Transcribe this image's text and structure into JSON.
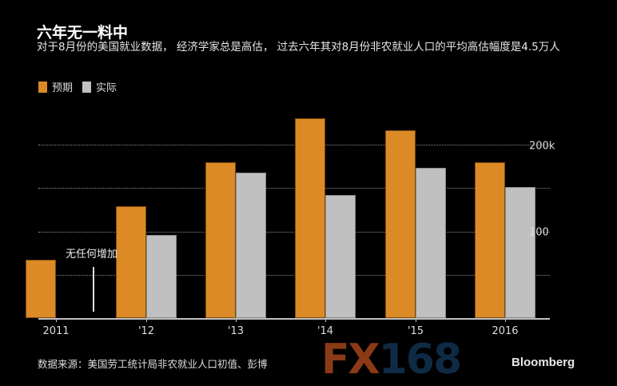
{
  "header": {
    "title": "六年无一料中",
    "subtitle": "对于8月份的美国就业数据， 经济学家总是高估， 过去六年其对8月份非农就业人口的平均高估幅度是4.5万人"
  },
  "legend": [
    {
      "label": "预期",
      "color": "#dc8a26"
    },
    {
      "label": "实际",
      "color": "#c0c0c0"
    }
  ],
  "annotation": "无任何增加",
  "source": "数据来源：美国劳工统计局非农就业人口初值、彭博",
  "brand": {
    "fx_part1": "FX",
    "fx_part2": "168",
    "bloomberg": "Bloomberg"
  },
  "y_labels": {
    "top": "200k",
    "mid": "100"
  },
  "chart_data": {
    "type": "bar",
    "title": "六年无一料中",
    "subtitle": "对于8月份的美国就业数据， 经济学家总是高估， 过去六年其对8月份非农就业人口的平均高估幅度是4.5万人",
    "categories": [
      "2011",
      "'12",
      "'13",
      "'14",
      "'15",
      "2016"
    ],
    "series": [
      {
        "name": "预期",
        "color": "#dc8a26",
        "values": [
          67,
          129,
          180,
          230,
          217,
          180
        ]
      },
      {
        "name": "实际",
        "color": "#c0c0c0",
        "values": [
          0,
          96,
          168,
          142,
          173,
          151
        ]
      }
    ],
    "xlabel": "",
    "ylabel": "",
    "yticks": [
      {
        "value": 100,
        "label": "100"
      },
      {
        "value": 200,
        "label": "200k"
      }
    ],
    "gridlines": [
      50,
      100,
      150,
      200
    ],
    "ylim": [
      0,
      250
    ],
    "grid": true,
    "legend_position": "top-left",
    "annotations": [
      {
        "category": "2011",
        "text": "无任何增加"
      }
    ]
  }
}
